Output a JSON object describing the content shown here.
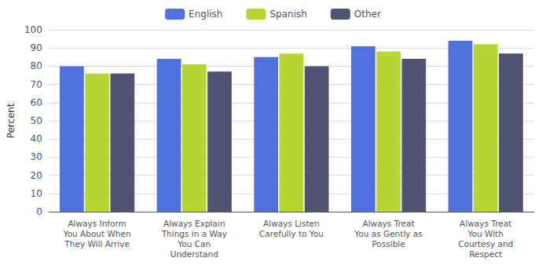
{
  "chart_data": {
    "type": "bar",
    "categories": [
      "Always Inform\nYou About When\nThey Will Arrive",
      "Always Explain\nThings in a Way\nYou Can\nUnderstand",
      "Always Listen\nCarefully to You",
      "Always Treat\nYou as Gently as\nPossible",
      "Always Treat\nYou With\nCourtesy and\nRespect"
    ],
    "series": [
      {
        "name": "English",
        "values": [
          80,
          84,
          85,
          91,
          94
        ]
      },
      {
        "name": "Spanish",
        "values": [
          76,
          81,
          87,
          88,
          92
        ]
      },
      {
        "name": "Other",
        "values": [
          76,
          77,
          80,
          84,
          87
        ]
      }
    ],
    "ylabel": "Percent",
    "ylim": [
      0,
      100
    ],
    "yticks": [
      0,
      10,
      20,
      30,
      40,
      50,
      60,
      70,
      80,
      90,
      100
    ],
    "grid": true,
    "legend": "top"
  }
}
